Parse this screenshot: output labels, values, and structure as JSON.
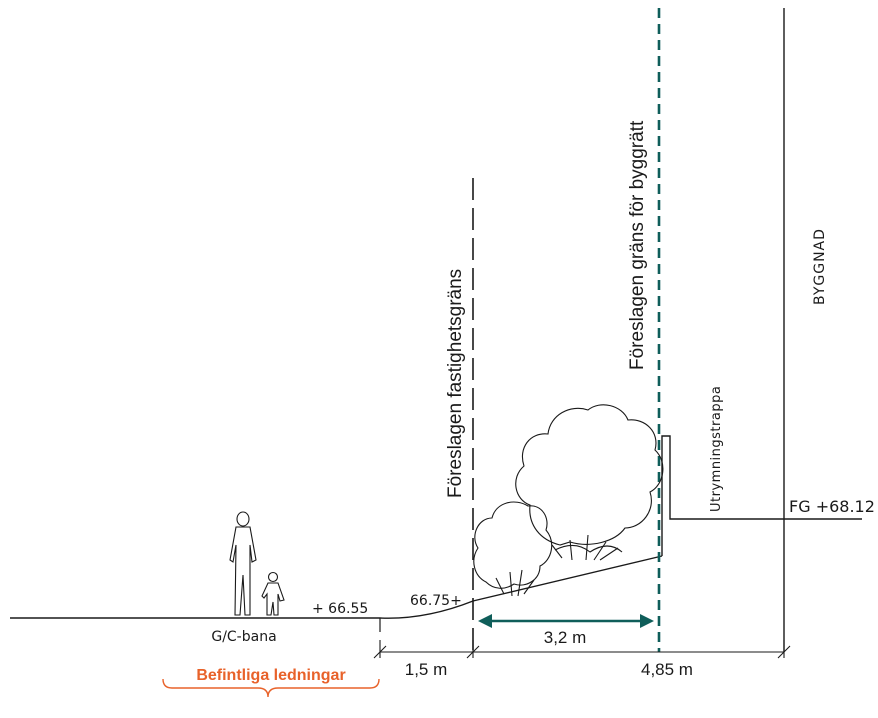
{
  "labels": {
    "property_boundary": "Föreslagen fastighetsgräns",
    "building_rights_boundary": "Föreslagen gräns för byggrätt",
    "building": "BYGGNAD",
    "escape_stair": "Utrymningstrappa",
    "floor_level": "FG +68.12",
    "level_path": "+ 66.55",
    "level_slope": "66.75+",
    "path": "G/C-bana",
    "existing_utilities": "Befintliga ledningar"
  },
  "dimensions": {
    "d1": "1,5 m",
    "d2": "3,2 m",
    "d3": "4,85 m"
  },
  "colors": {
    "line": "#1a1a1a",
    "boundary_dashed": "#0f5e5a",
    "dimension_arrow": "#0f5e5a",
    "utilities": "#e8622a"
  }
}
